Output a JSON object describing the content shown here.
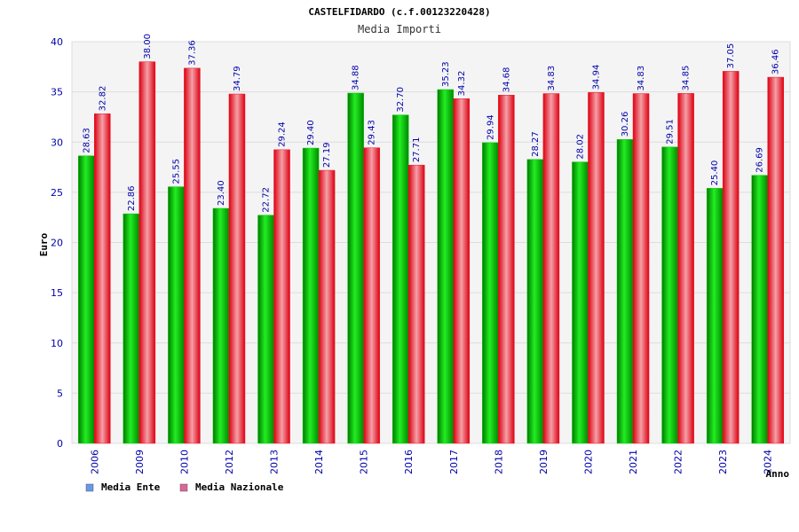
{
  "chart_data": {
    "type": "bar",
    "title": "CASTELFIDARDO (c.f.00123220428)",
    "subtitle": "Media Importi",
    "ylabel": "Euro",
    "xlabel": "Anno",
    "ylim": [
      0,
      40
    ],
    "yticks": [
      "0",
      "5",
      "10",
      "15",
      "20",
      "25",
      "30",
      "35",
      "40"
    ],
    "grid": true,
    "legend_position": "bottom-left",
    "categories": [
      "2006",
      "2009",
      "2010",
      "2012",
      "2013",
      "2014",
      "2015",
      "2016",
      "2017",
      "2018",
      "2019",
      "2020",
      "2021",
      "2022",
      "2023",
      "2024"
    ],
    "series": [
      {
        "name": "Media Ente",
        "color": "#00cc00",
        "legend_color": "#6699ee",
        "values": [
          28.63,
          22.86,
          25.55,
          23.4,
          22.72,
          29.4,
          34.88,
          32.7,
          35.23,
          29.94,
          28.27,
          28.02,
          30.26,
          29.51,
          25.4,
          26.69
        ],
        "labels": [
          "28.63",
          "22.86",
          "25.55",
          "23.40",
          "22.72",
          "29.40",
          "34.88",
          "32.70",
          "35.23",
          "29.94",
          "28.27",
          "28.02",
          "30.26",
          "29.51",
          "25.40",
          "26.69"
        ]
      },
      {
        "name": "Media Nazionale",
        "color": "#ee1122",
        "legend_color": "#dd6699",
        "values": [
          32.82,
          38.0,
          37.36,
          34.79,
          29.24,
          27.19,
          29.43,
          27.71,
          34.32,
          34.68,
          34.83,
          34.94,
          34.83,
          34.85,
          37.05,
          36.46
        ],
        "labels": [
          "32.82",
          "38.00",
          "37.36",
          "34.79",
          "29.24",
          "27.19",
          "29.43",
          "27.71",
          "34.32",
          "34.68",
          "34.83",
          "34.94",
          "34.83",
          "34.85",
          "37.05",
          "36.46"
        ]
      }
    ]
  }
}
